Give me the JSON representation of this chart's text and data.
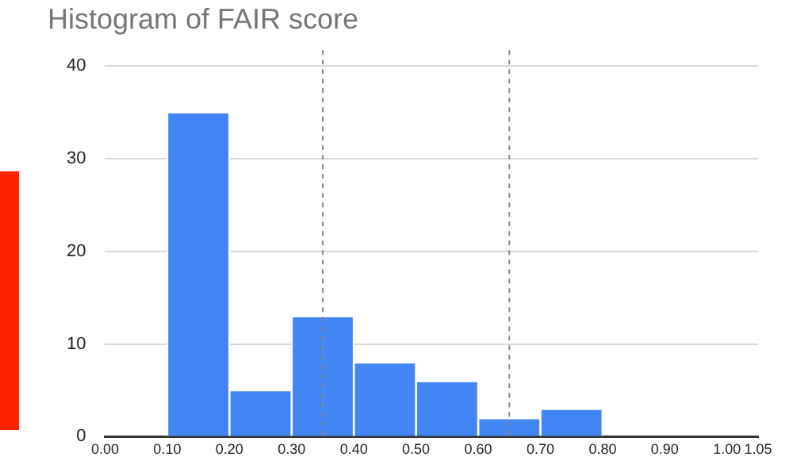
{
  "chart_data": {
    "type": "histogram",
    "title": "Histogram of FAIR score",
    "bins": [
      0.1,
      0.2,
      0.3,
      0.4,
      0.5,
      0.6,
      0.7,
      0.8
    ],
    "values": [
      35,
      5,
      13,
      8,
      6,
      2,
      3
    ],
    "color": "#4285f4",
    "xlim": [
      0,
      1.05
    ],
    "xticks": [
      {
        "value": 0,
        "label": "0.00"
      },
      {
        "value": 0.1,
        "label": "0.10"
      },
      {
        "value": 0.2,
        "label": "0.20"
      },
      {
        "value": 0.3,
        "label": "0.30"
      },
      {
        "value": 0.4,
        "label": "0.40"
      },
      {
        "value": 0.5,
        "label": "0.50"
      },
      {
        "value": 0.6,
        "label": "0.60"
      },
      {
        "value": 0.7,
        "label": "0.70"
      },
      {
        "value": 0.8,
        "label": "0.80"
      },
      {
        "value": 0.9,
        "label": "0.90"
      },
      {
        "value": 1,
        "label": "1.00"
      },
      {
        "value": 1.05,
        "label": "1.05"
      }
    ],
    "ylim": [
      0,
      40
    ],
    "yticks": [
      0,
      10,
      20,
      30,
      40
    ],
    "grid": "y",
    "ref_lines": [
      {
        "axis": "x",
        "value": 0.35,
        "color": "#888888",
        "line_style": "dashed"
      },
      {
        "axis": "x",
        "value": 0.65,
        "color": "#888888",
        "line_style": "dashed"
      }
    ]
  }
}
